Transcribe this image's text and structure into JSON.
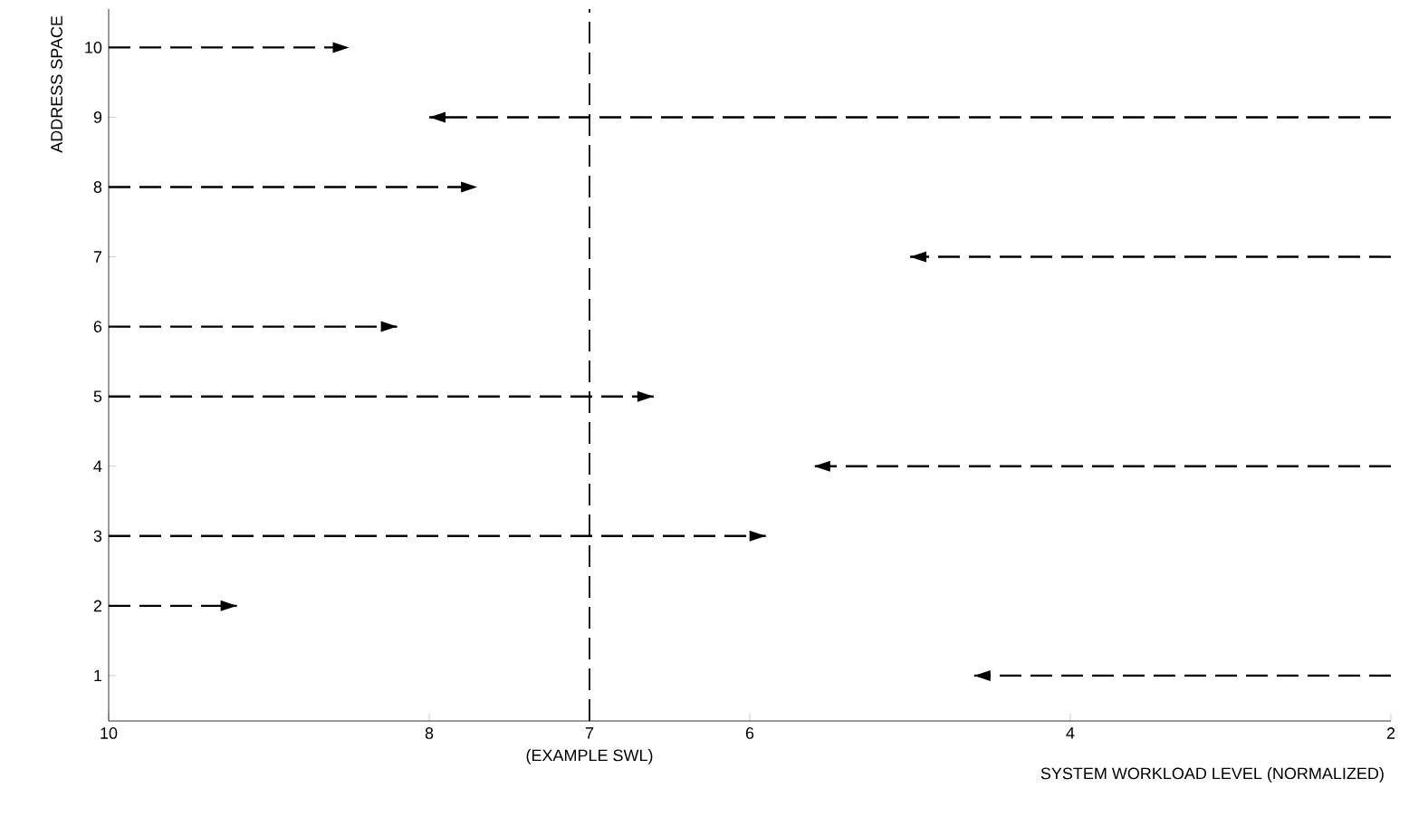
{
  "chart_data": {
    "type": "line",
    "xlabel": "SYSTEM WORKLOAD LEVEL (NORMALIZED)",
    "ylabel": "ADDRESS SPACE",
    "xlim": [
      10,
      2
    ],
    "xticks": [
      10,
      8,
      7,
      6,
      4,
      2
    ],
    "ylim": [
      0.35,
      10.55
    ],
    "yticks": [
      1,
      2,
      3,
      4,
      5,
      6,
      7,
      8,
      9,
      10
    ],
    "series": [
      {
        "color": "#000000",
        "x": [
          10,
          8.5
        ],
        "values": [
          10,
          10
        ]
      },
      {
        "color": "#000000",
        "x": [
          2,
          8.0
        ],
        "values": [
          9,
          9
        ]
      },
      {
        "color": "#000000",
        "x": [
          10,
          7.7
        ],
        "values": [
          8,
          8
        ]
      },
      {
        "color": "#000000",
        "x": [
          2,
          5.0
        ],
        "values": [
          7,
          7
        ]
      },
      {
        "color": "#000000",
        "x": [
          10,
          8.2
        ],
        "values": [
          6,
          6
        ]
      },
      {
        "color": "#000000",
        "x": [
          10,
          6.6
        ],
        "values": [
          5,
          5
        ]
      },
      {
        "color": "#000000",
        "x": [
          2,
          5.6
        ],
        "values": [
          4,
          4
        ]
      },
      {
        "color": "#000000",
        "x": [
          10,
          5.9
        ],
        "values": [
          3,
          3
        ]
      },
      {
        "color": "#000000",
        "x": [
          10,
          9.2
        ],
        "values": [
          2,
          2
        ]
      },
      {
        "color": "#000000",
        "x": [
          2,
          4.6
        ],
        "values": [
          1,
          1
        ]
      }
    ],
    "ref_lines": [
      {
        "axis": "x",
        "value": 7,
        "label": "(EXAMPLE SWL)",
        "color": "#000000",
        "line_style": "dashed"
      }
    ],
    "line_style": "dashed",
    "marker": "none",
    "grid": false
  }
}
